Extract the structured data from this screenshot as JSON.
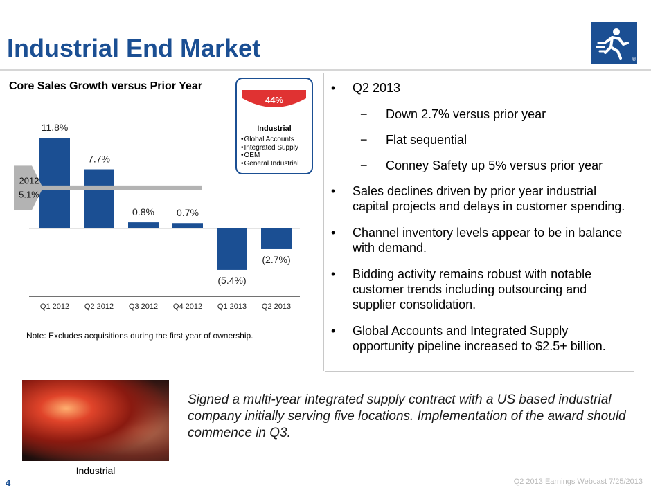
{
  "title": "Industrial End Market",
  "logo_icon": "running-man-logo-icon",
  "brand_color": "#1b4f93",
  "chart_data": {
    "type": "bar",
    "title": "Core Sales Growth versus Prior Year",
    "categories": [
      "Q1 2012",
      "Q2 2012",
      "Q3 2012",
      "Q4 2012",
      "Q1 2013",
      "Q2 2013"
    ],
    "values": [
      11.8,
      7.7,
      0.8,
      0.7,
      -5.4,
      -2.7
    ],
    "data_labels": [
      "11.8%",
      "7.7%",
      "0.8%",
      "0.7%",
      "(5.4%)",
      "(2.7%)"
    ],
    "ylim": [
      -8,
      13
    ],
    "bar_color": "#1b4f93",
    "reference_line": {
      "label_year": "2012",
      "label_value": "5.1%",
      "value": 5.1,
      "color": "#b3b3b3"
    }
  },
  "segment_badge": {
    "percent": "44%",
    "share": 0.44,
    "title": "Industrial",
    "items": [
      "Global Accounts",
      "Integrated Supply",
      "OEM",
      "General Industrial"
    ],
    "color": "#e03232"
  },
  "note": "Note:  Excludes acquisitions during the first year of ownership.",
  "bullets": [
    {
      "level": 1,
      "text": "Q2 2013"
    },
    {
      "level": 2,
      "text": "Down 2.7% versus prior year"
    },
    {
      "level": 2,
      "text": "Flat sequential"
    },
    {
      "level": 2,
      "text": "Conney Safety up 5% versus prior year"
    },
    {
      "level": 1,
      "text": "Sales declines driven by prior year industrial capital projects and delays in customer spending."
    },
    {
      "level": 1,
      "text": "Channel inventory levels appear to be in balance with demand."
    },
    {
      "level": 1,
      "text": "Bidding activity remains robust with notable customer trends including outsourcing and supplier consolidation."
    },
    {
      "level": 1,
      "text": "Global Accounts and Integrated Supply opportunity pipeline increased to $2.5+ billion."
    }
  ],
  "photo_caption": "Industrial",
  "callout": "Signed a multi-year integrated supply contract with a US based industrial company initially serving five locations.  Implementation of the award should commence in Q3.",
  "page_number": "4",
  "footer": "Q2 2013 Earnings Webcast 7/25/2013"
}
